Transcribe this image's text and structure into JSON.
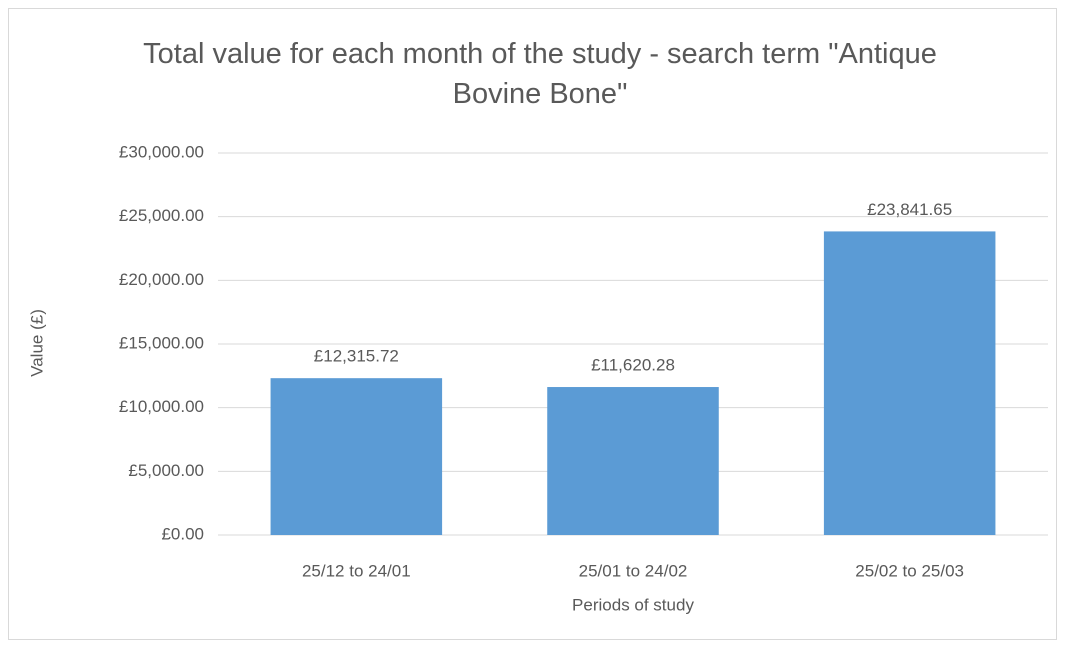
{
  "chart_data": {
    "type": "bar",
    "title": "Total value for each month of the study - search term \"Antique Bovine Bone\"",
    "x_label": "Periods of study",
    "y_label": "Value (£)",
    "categories": [
      "25/12 to 24/01",
      "25/01 to 24/02",
      "25/02 to 25/03"
    ],
    "values": [
      12315.72,
      11620.28,
      23841.65
    ],
    "value_labels": [
      "£12,315.72",
      "£11,620.28",
      "£23,841.65"
    ],
    "color": "#5b9bd5",
    "ylim": [
      0,
      30000
    ],
    "yticks": [
      {
        "value": 0,
        "label": "£0.00"
      },
      {
        "value": 5000,
        "label": "£5,000.00"
      },
      {
        "value": 10000,
        "label": "£10,000.00"
      },
      {
        "value": 15000,
        "label": "£15,000.00"
      },
      {
        "value": 20000,
        "label": "£20,000.00"
      },
      {
        "value": 25000,
        "label": "£25,000.00"
      },
      {
        "value": 30000,
        "label": "£30,000.00"
      }
    ],
    "grid": true
  }
}
